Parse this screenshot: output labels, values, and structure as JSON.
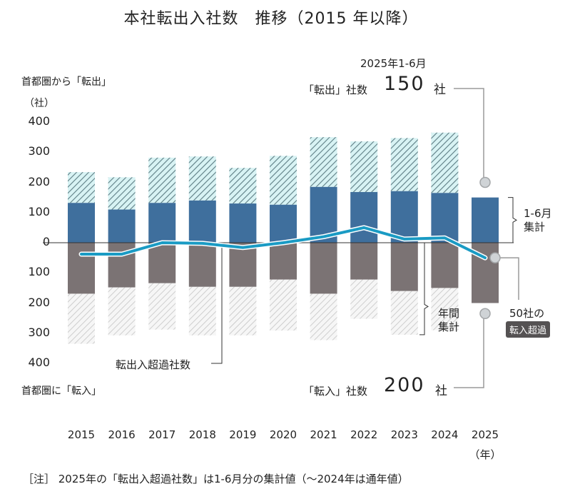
{
  "chart_data": {
    "type": "bar",
    "title": "本社転出入社数　推移（2015 年以降）",
    "ylabel_top": "首都圏から「転出」",
    "ylabel_unit": "（社）",
    "ylabel_bottom": "首都圏に「転入」",
    "xlabel_unit": "（年）",
    "categories": [
      "2015",
      "2016",
      "2017",
      "2018",
      "2019",
      "2020",
      "2021",
      "2022",
      "2023",
      "2024",
      "2025"
    ],
    "ylim": [
      -400,
      400
    ],
    "yticks": [
      {
        "value": 400,
        "label": "400"
      },
      {
        "value": 300,
        "label": "300"
      },
      {
        "value": 200,
        "label": "200"
      },
      {
        "value": 100,
        "label": "100"
      },
      {
        "value": 0,
        "label": "0"
      },
      {
        "value": -100,
        "label": "100"
      },
      {
        "value": -200,
        "label": "200"
      },
      {
        "value": -300,
        "label": "300"
      },
      {
        "value": -400,
        "label": "400"
      }
    ],
    "series": [
      {
        "name": "転出 1-6月集計",
        "kind": "bar-positive-solid",
        "color": "#3f6f9d",
        "values": [
          132,
          110,
          132,
          140,
          130,
          126,
          185,
          168,
          171,
          165,
          150
        ]
      },
      {
        "name": "転出 年間集計",
        "kind": "bar-positive-hatched",
        "color": "#d8f3f4",
        "stripe": "#5d7d84",
        "values": [
          234,
          217,
          282,
          286,
          248,
          288,
          350,
          336,
          347,
          365,
          null
        ]
      },
      {
        "name": "転入 1-6月集計",
        "kind": "bar-negative-solid",
        "color": "#7b7374",
        "values": [
          -169,
          -148,
          -134,
          -146,
          -146,
          -122,
          -169,
          -122,
          -160,
          -150,
          -200
        ]
      },
      {
        "name": "転入 年間集計",
        "kind": "bar-negative-hatched",
        "color": "#f4f4f4",
        "stripe": "#bdbdbd",
        "values": [
          -335,
          -307,
          -288,
          -307,
          -307,
          -291,
          -323,
          -252,
          -305,
          -290,
          null
        ]
      },
      {
        "name": "転出入超過社数",
        "kind": "line",
        "color": "#1a9bc4",
        "values": [
          -38,
          -38,
          0,
          -2,
          -16,
          0,
          20,
          50,
          12,
          16,
          -50
        ]
      }
    ],
    "annotations": {
      "period": "2025年1-6月",
      "out_label": "「転出」社数",
      "out_value": "150",
      "out_unit": "社",
      "in_label": "「転入」社数",
      "in_value": "200",
      "in_unit": "社",
      "half_year_label_1": "1-6月",
      "half_year_label_2": "集計",
      "annual_label_1": "年間",
      "annual_label_2": "集計",
      "net_label": "50社の",
      "net_badge": "転入超過",
      "line_label": "転出入超過社数"
    },
    "note": "［注］ 2025年の「転出入超過社数」は1-6月分の集計値（～2024年は通年値）"
  }
}
